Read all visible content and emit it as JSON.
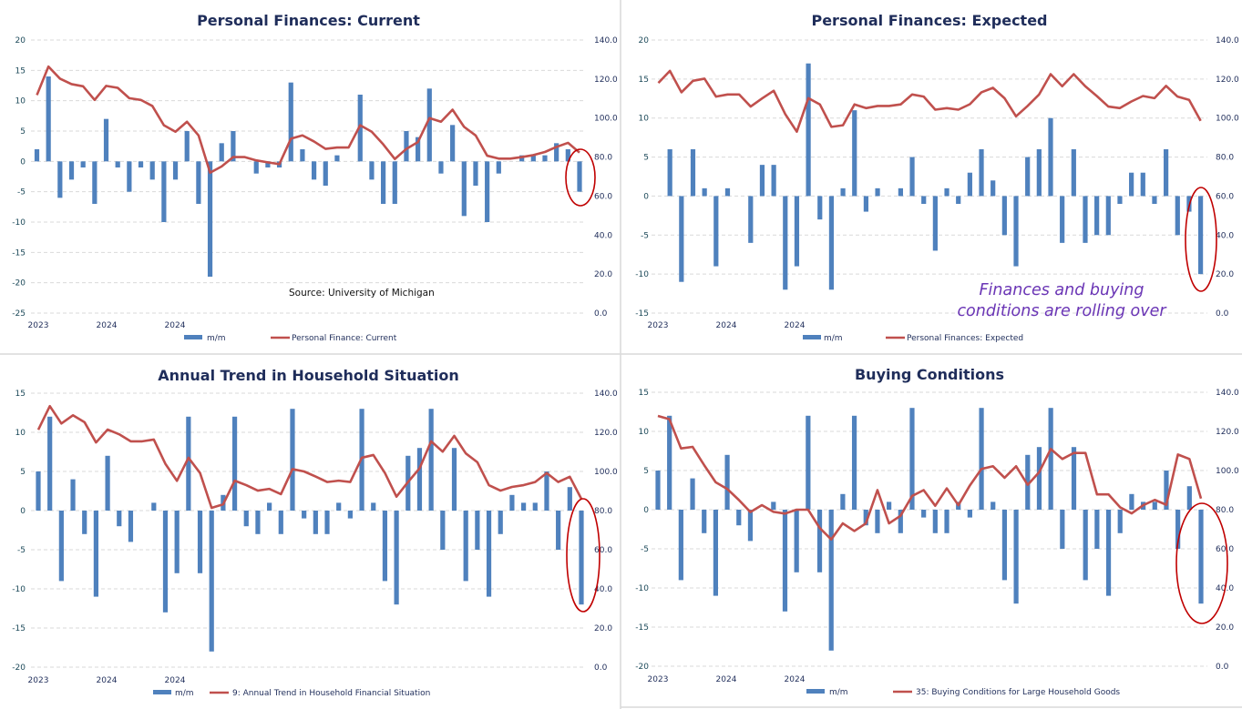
{
  "colors": {
    "bars": "#4f81bd",
    "line": "#c0504d",
    "highlight_ellipse": "#c00000",
    "title": "#1f2d5a",
    "annotation": "#6a35b5"
  },
  "source_note": "Source: University of Michigan",
  "annotation": [
    "Finances and buying",
    "conditions are rolling over"
  ],
  "chart_data": [
    {
      "type": "bar+line",
      "title": "Personal Finances: Current",
      "x_tick_labels": [
        "2023",
        "2024",
        "2024"
      ],
      "left_axis": {
        "range": [
          -25,
          20
        ],
        "ticks": [
          20,
          15,
          10,
          5,
          0,
          -5,
          -10,
          -15,
          -20,
          -25
        ]
      },
      "right_axis": {
        "range": [
          0,
          140
        ],
        "ticks": [
          "140.0",
          "120.0",
          "100.0",
          "80.0",
          "60.0",
          "40.0",
          "20.0",
          "0.0"
        ]
      },
      "grid": true,
      "legend_position": "bottom",
      "series": [
        {
          "name": "m/m",
          "type": "bar",
          "axis": "left",
          "values": [
            2,
            14,
            -6,
            -3,
            -1,
            -7,
            7,
            -1,
            -5,
            -1,
            -3,
            -10,
            -3,
            5,
            -7,
            -19,
            3,
            5,
            0,
            -2,
            -1,
            -1,
            13,
            2,
            -3,
            -4,
            1,
            0,
            11,
            -3,
            -7,
            -7,
            5,
            4,
            12,
            -2,
            6,
            -9,
            -4,
            -10,
            -2,
            0,
            1,
            1,
            1,
            3,
            2,
            -5
          ]
        },
        {
          "name": "Personal Finance: Current",
          "type": "line",
          "axis": "right",
          "values": [
            111.8,
            126.4,
            120.2,
            117.4,
            116.3,
            109.3,
            116.5,
            115.5,
            110.2,
            109.3,
            106.2,
            96.3,
            93,
            98.1,
            91.1,
            72,
            75.2,
            80,
            80,
            78.3,
            77.3,
            76.4,
            89.4,
            91.1,
            88,
            84.2,
            84.9,
            84.9,
            96.3,
            93,
            86.5,
            79,
            84.2,
            87.7,
            100,
            98.1,
            104.3,
            95.5,
            91.1,
            80.7,
            79.2,
            79.2,
            80,
            81,
            82.6,
            85.2,
            87.3,
            82.3
          ]
        }
      ]
    },
    {
      "type": "bar+line",
      "title": "Personal Finances: Expected",
      "x_tick_labels": [
        "2023",
        "2024",
        "2024"
      ],
      "left_axis": {
        "range": [
          -15,
          20
        ],
        "ticks": [
          20,
          15,
          10,
          5,
          0,
          -5,
          -10,
          -15
        ]
      },
      "right_axis": {
        "range": [
          0,
          140
        ],
        "ticks": [
          "140.0",
          "120.0",
          "100.0",
          "80.0",
          "60.0",
          "40.0",
          "20.0",
          "0.0"
        ]
      },
      "grid": true,
      "legend_position": "bottom",
      "series": [
        {
          "name": "m/m",
          "type": "bar",
          "axis": "left",
          "values": [
            0,
            6,
            -11,
            6,
            1,
            -9,
            1,
            0,
            -6,
            4,
            4,
            -12,
            -9,
            17,
            -3,
            -12,
            1,
            11,
            -2,
            1,
            0,
            1,
            5,
            -1,
            -7,
            1,
            -1,
            3,
            6,
            2,
            -5,
            -9,
            5,
            6,
            10,
            -6,
            6,
            -6,
            -5,
            -5,
            -1,
            3,
            3,
            -1,
            6,
            -5,
            -2,
            -10
          ]
        },
        {
          "name": "Personal Finances: Expected",
          "type": "line",
          "axis": "right",
          "values": [
            118,
            124.2,
            113.2,
            119.1,
            120.2,
            111,
            112.1,
            112.1,
            105.9,
            110.1,
            114,
            102,
            93,
            110.2,
            107,
            95.5,
            96.3,
            107,
            105.1,
            106.2,
            106.2,
            107,
            112.1,
            111,
            104.3,
            105.1,
            104.3,
            107.1,
            113.2,
            115.5,
            110.2,
            100.9,
            106.2,
            112.1,
            122.5,
            116.3,
            122.5,
            116.3,
            111.3,
            105.9,
            105.1,
            108.5,
            111.3,
            110.2,
            116.5,
            111,
            109.3,
            98.6
          ]
        }
      ]
    },
    {
      "type": "bar+line",
      "title": "Annual Trend in Household Situation",
      "x_tick_labels": [
        "2023",
        "2024",
        "2024"
      ],
      "left_axis": {
        "range": [
          -20,
          15
        ],
        "ticks": [
          15,
          10,
          5,
          0,
          -5,
          -10,
          -15,
          -20
        ]
      },
      "right_axis": {
        "range": [
          0,
          140
        ],
        "ticks": [
          "140.0",
          "120.0",
          "100.0",
          "80.0",
          "60.0",
          "40.0",
          "20.0",
          "0.0"
        ]
      },
      "grid": true,
      "legend_position": "bottom",
      "series": [
        {
          "name": "m/m",
          "type": "bar",
          "axis": "left",
          "values": [
            5,
            12,
            -9,
            4,
            -3,
            -11,
            7,
            -2,
            -4,
            0,
            1,
            -13,
            -8,
            12,
            -8,
            -18,
            2,
            12,
            -2,
            -3,
            1,
            -3,
            13,
            -1,
            -3,
            -3,
            1,
            -1,
            13,
            1,
            -9,
            -12,
            7,
            8,
            13,
            -5,
            8,
            -9,
            -5,
            -11,
            -3,
            2,
            1,
            1,
            5,
            -5,
            3,
            -12
          ]
        },
        {
          "name": "9: Annual Trend in Household Financial Situation",
          "type": "line",
          "axis": "right",
          "values": [
            121.3,
            133.4,
            124.5,
            128.7,
            125.2,
            114.8,
            121.4,
            119,
            115.4,
            115.4,
            116.3,
            103.9,
            95.2,
            107,
            99.2,
            81.4,
            83.2,
            95.3,
            93,
            90.2,
            91.1,
            88.4,
            101.2,
            100,
            97.4,
            94.6,
            95.3,
            94.6,
            107,
            108.4,
            99.2,
            87.1,
            94.6,
            101.6,
            115.4,
            110.1,
            118.2,
            109.2,
            104.7,
            93,
            90.2,
            92.1,
            93,
            94.6,
            99.2,
            94.6,
            97.3,
            86
          ]
        }
      ]
    },
    {
      "type": "bar+line",
      "title": "Buying Conditions",
      "x_tick_labels": [
        "2023",
        "2024",
        "2024"
      ],
      "left_axis": {
        "range": [
          -20,
          15
        ],
        "ticks": [
          15,
          10,
          5,
          0,
          -5,
          -10,
          -15,
          -20
        ]
      },
      "right_axis": {
        "range": [
          0,
          140
        ],
        "ticks": [
          "140.0",
          "120.0",
          "100.0",
          "80.0",
          "60.0",
          "40.0",
          "20.0",
          "0.0"
        ]
      },
      "grid": true,
      "legend_position": "bottom",
      "series": [
        {
          "name": "m/m",
          "type": "bar",
          "axis": "left",
          "values": [
            5,
            12,
            -9,
            4,
            -3,
            -11,
            7,
            -2,
            -4,
            0,
            1,
            -13,
            -8,
            12,
            -8,
            -18,
            2,
            12,
            -2,
            -3,
            1,
            -3,
            13,
            -1,
            -3,
            -3,
            1,
            -1,
            13,
            1,
            -9,
            -12,
            7,
            8,
            13,
            -5,
            8,
            -9,
            -5,
            -11,
            -3,
            2,
            1,
            1,
            5,
            -5,
            3,
            -12
          ]
        },
        {
          "name": "35: Buying Conditions for Large Household Goods",
          "type": "line",
          "axis": "right",
          "values": [
            127.9,
            126.2,
            111.3,
            112.1,
            102.8,
            94,
            90.6,
            85,
            78.8,
            82.3,
            78.9,
            78,
            80,
            80,
            70.7,
            64.8,
            73,
            69.1,
            73,
            90,
            73,
            76.9,
            87,
            90,
            82,
            90.9,
            82.3,
            92.4,
            100.8,
            102.2,
            96.3,
            102.2,
            92.7,
            99.2,
            111,
            105.9,
            109,
            109,
            87.8,
            87.8,
            81.2,
            78.1,
            82.3,
            85,
            82.5,
            108.2,
            105.9,
            85.7
          ]
        }
      ]
    }
  ]
}
